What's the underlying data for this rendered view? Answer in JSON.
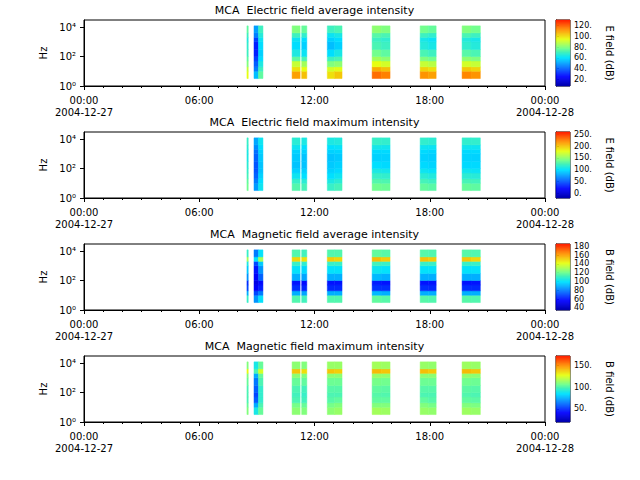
{
  "chart_data": [
    {
      "type": "heatmap",
      "title": "MCA  Electric field average intensity",
      "xlim": [
        "2004-12-27 00:00",
        "2004-12-28 00:00"
      ],
      "xticks": [
        {
          "value": "2004-12-27 00:00",
          "label": "00:00\n2004-12-27"
        },
        {
          "value": "2004-12-27 06:00",
          "label": "06:00"
        },
        {
          "value": "2004-12-27 12:00",
          "label": "12:00"
        },
        {
          "value": "2004-12-27 18:00",
          "label": "18:00"
        },
        {
          "value": "2004-12-28 00:00",
          "label": "00:00\n2004-12-28"
        }
      ],
      "ylabel": "Hz",
      "log": "y",
      "ylim": [
        1,
        30000
      ],
      "yticks": [
        {
          "value": 1,
          "label": "10⁰"
        },
        {
          "value": 100,
          "label": "10²"
        },
        {
          "value": 10000,
          "label": "10⁴"
        }
      ],
      "x": [
        [
          "2004-12-27 08:29",
          "2004-12-27 08:33"
        ],
        [
          "2004-12-27 08:51",
          "2004-12-27 09:05"
        ],
        [
          "2004-12-27 09:05",
          "2004-12-27 09:19"
        ],
        [
          "2004-12-27 10:50",
          "2004-12-27 11:15"
        ],
        [
          "2004-12-27 11:20",
          "2004-12-27 11:36"
        ],
        [
          "2004-12-27 12:40",
          "2004-12-27 13:03"
        ],
        [
          "2004-12-27 13:03",
          "2004-12-27 13:26"
        ],
        [
          "2004-12-27 15:00",
          "2004-12-27 15:28"
        ],
        [
          "2004-12-27 15:28",
          "2004-12-27 15:56"
        ],
        [
          "2004-12-27 17:30",
          "2004-12-27 17:55"
        ],
        [
          "2004-12-27 17:55",
          "2004-12-27 18:20"
        ],
        [
          "2004-12-27 19:41",
          "2004-12-27 20:09"
        ],
        [
          "2004-12-27 20:09",
          "2004-12-27 20:38"
        ]
      ],
      "y_edges": [
        3.2,
        10,
        20,
        50,
        100,
        300,
        1000,
        2000,
        4000,
        12000
      ],
      "cells": [
        [
          95,
          90,
          80,
          75,
          70,
          68,
          66,
          70,
          75
        ],
        [
          55,
          45,
          40,
          35,
          30,
          30,
          35,
          45,
          50
        ],
        [
          75,
          70,
          65,
          60,
          58,
          60,
          62,
          66,
          70
        ],
        [
          110,
          100,
          90,
          75,
          65,
          60,
          62,
          70,
          80
        ],
        [
          105,
          95,
          85,
          72,
          62,
          58,
          60,
          68,
          76
        ],
        [
          100,
          92,
          80,
          70,
          60,
          55,
          58,
          62,
          70
        ],
        [
          104,
          94,
          82,
          72,
          64,
          58,
          60,
          64,
          72
        ],
        [
          118,
          108,
          95,
          85,
          78,
          72,
          70,
          74,
          82
        ],
        [
          115,
          105,
          92,
          82,
          75,
          70,
          68,
          72,
          80
        ],
        [
          112,
          102,
          90,
          80,
          72,
          66,
          64,
          70,
          78
        ],
        [
          110,
          100,
          88,
          78,
          70,
          64,
          62,
          68,
          76
        ],
        [
          114,
          104,
          92,
          82,
          74,
          68,
          66,
          72,
          80
        ],
        [
          112,
          102,
          90,
          80,
          72,
          66,
          64,
          70,
          78
        ]
      ],
      "colorbar": {
        "label": "E field (dB)",
        "range": [
          8,
          130
        ],
        "ticks": [
          {
            "value": 20,
            "label": "20."
          },
          {
            "value": 40,
            "label": "40."
          },
          {
            "value": 60,
            "label": "60."
          },
          {
            "value": 80,
            "label": "80."
          },
          {
            "value": 100,
            "label": "100."
          },
          {
            "value": 120,
            "label": "120."
          }
        ]
      }
    },
    {
      "type": "heatmap",
      "title": "MCA  Electric field maximum intensity",
      "xlim": [
        "2004-12-27 00:00",
        "2004-12-28 00:00"
      ],
      "xticks": [
        {
          "value": "2004-12-27 00:00",
          "label": "00:00\n2004-12-27"
        },
        {
          "value": "2004-12-27 06:00",
          "label": "06:00"
        },
        {
          "value": "2004-12-27 12:00",
          "label": "12:00"
        },
        {
          "value": "2004-12-27 18:00",
          "label": "18:00"
        },
        {
          "value": "2004-12-28 00:00",
          "label": "00:00\n2004-12-28"
        }
      ],
      "ylabel": "Hz",
      "log": "y",
      "ylim": [
        1,
        30000
      ],
      "yticks": [
        {
          "value": 1,
          "label": "10⁰"
        },
        {
          "value": 100,
          "label": "10²"
        },
        {
          "value": 10000,
          "label": "10⁴"
        }
      ],
      "x": [
        [
          "2004-12-27 08:29",
          "2004-12-27 08:33"
        ],
        [
          "2004-12-27 08:51",
          "2004-12-27 09:05"
        ],
        [
          "2004-12-27 09:05",
          "2004-12-27 09:19"
        ],
        [
          "2004-12-27 10:50",
          "2004-12-27 11:15"
        ],
        [
          "2004-12-27 11:20",
          "2004-12-27 11:36"
        ],
        [
          "2004-12-27 12:40",
          "2004-12-27 13:03"
        ],
        [
          "2004-12-27 13:03",
          "2004-12-27 13:26"
        ],
        [
          "2004-12-27 15:00",
          "2004-12-27 15:28"
        ],
        [
          "2004-12-27 15:28",
          "2004-12-27 15:56"
        ],
        [
          "2004-12-27 17:30",
          "2004-12-27 17:55"
        ],
        [
          "2004-12-27 17:55",
          "2004-12-27 18:20"
        ],
        [
          "2004-12-27 19:41",
          "2004-12-27 20:09"
        ],
        [
          "2004-12-27 20:09",
          "2004-12-27 20:38"
        ]
      ],
      "y_edges": [
        3.2,
        10,
        20,
        50,
        100,
        300,
        1000,
        2000,
        4000,
        12000
      ],
      "cells": [
        [
          140,
          135,
          125,
          120,
          115,
          110,
          110,
          115,
          120
        ],
        [
          75,
          65,
          55,
          50,
          50,
          55,
          60,
          70,
          80
        ],
        [
          105,
          100,
          95,
          90,
          90,
          92,
          95,
          100,
          105
        ],
        [
          130,
          120,
          105,
          95,
          90,
          92,
          95,
          105,
          115
        ],
        [
          125,
          115,
          100,
          95,
          90,
          90,
          95,
          100,
          110
        ],
        [
          120,
          110,
          100,
          95,
          92,
          90,
          95,
          100,
          110
        ],
        [
          125,
          115,
          105,
          98,
          95,
          92,
          96,
          102,
          112
        ],
        [
          140,
          130,
          120,
          110,
          100,
          95,
          98,
          108,
          120
        ],
        [
          138,
          128,
          118,
          108,
          98,
          95,
          98,
          106,
          118
        ],
        [
          135,
          125,
          115,
          105,
          98,
          95,
          98,
          105,
          118
        ],
        [
          132,
          122,
          112,
          102,
          96,
          94,
          96,
          104,
          116
        ],
        [
          136,
          126,
          116,
          106,
          98,
          96,
          98,
          106,
          118
        ],
        [
          134,
          124,
          114,
          104,
          98,
          95,
          98,
          105,
          118
        ]
      ],
      "colorbar": {
        "label": "E field (dB)",
        "range": [
          -20,
          260
        ],
        "ticks": [
          {
            "value": 0,
            "label": "0."
          },
          {
            "value": 50,
            "label": "50."
          },
          {
            "value": 100,
            "label": "100."
          },
          {
            "value": 150,
            "label": "150."
          },
          {
            "value": 200,
            "label": "200."
          },
          {
            "value": 250,
            "label": "250."
          }
        ]
      }
    },
    {
      "type": "heatmap",
      "title": "MCA  Magnetic field average intensity",
      "xlim": [
        "2004-12-27 00:00",
        "2004-12-28 00:00"
      ],
      "xticks": [
        {
          "value": "2004-12-27 00:00",
          "label": "00:00\n2004-12-27"
        },
        {
          "value": "2004-12-27 06:00",
          "label": "06:00"
        },
        {
          "value": "2004-12-27 12:00",
          "label": "12:00"
        },
        {
          "value": "2004-12-27 18:00",
          "label": "18:00"
        },
        {
          "value": "2004-12-28 00:00",
          "label": "00:00\n2004-12-28"
        }
      ],
      "ylabel": "Hz",
      "log": "y",
      "ylim": [
        1,
        30000
      ],
      "yticks": [
        {
          "value": 1,
          "label": "10⁰"
        },
        {
          "value": 100,
          "label": "10²"
        },
        {
          "value": 10000,
          "label": "10⁴"
        }
      ],
      "x": [
        [
          "2004-12-27 08:29",
          "2004-12-27 08:33"
        ],
        [
          "2004-12-27 08:51",
          "2004-12-27 09:05"
        ],
        [
          "2004-12-27 09:05",
          "2004-12-27 09:19"
        ],
        [
          "2004-12-27 10:50",
          "2004-12-27 11:15"
        ],
        [
          "2004-12-27 11:20",
          "2004-12-27 11:36"
        ],
        [
          "2004-12-27 12:40",
          "2004-12-27 13:03"
        ],
        [
          "2004-12-27 13:03",
          "2004-12-27 13:26"
        ],
        [
          "2004-12-27 15:00",
          "2004-12-27 15:28"
        ],
        [
          "2004-12-27 15:28",
          "2004-12-27 15:56"
        ],
        [
          "2004-12-27 17:30",
          "2004-12-27 17:55"
        ],
        [
          "2004-12-27 17:55",
          "2004-12-27 18:20"
        ],
        [
          "2004-12-27 19:41",
          "2004-12-27 20:09"
        ],
        [
          "2004-12-27 20:09",
          "2004-12-27 20:38"
        ]
      ],
      "y_edges": [
        3.2,
        10,
        20,
        50,
        100,
        300,
        1000,
        2000,
        4000,
        12000
      ],
      "cells": [
        [
          110,
          90,
          70,
          65,
          85,
          95,
          105,
          130,
          110
        ],
        [
          85,
          70,
          55,
          50,
          55,
          60,
          70,
          100,
          80
        ],
        [
          100,
          80,
          62,
          58,
          75,
          85,
          95,
          130,
          100
        ],
        [
          115,
          90,
          65,
          60,
          90,
          100,
          110,
          150,
          115
        ],
        [
          112,
          88,
          63,
          58,
          88,
          98,
          108,
          148,
          112
        ],
        [
          115,
          90,
          64,
          60,
          90,
          100,
          110,
          152,
          115
        ],
        [
          115,
          90,
          64,
          60,
          90,
          100,
          110,
          150,
          115
        ],
        [
          118,
          92,
          66,
          62,
          92,
          102,
          112,
          155,
          118
        ],
        [
          116,
          90,
          65,
          60,
          90,
          100,
          110,
          152,
          116
        ],
        [
          116,
          90,
          65,
          60,
          90,
          100,
          110,
          154,
          116
        ],
        [
          115,
          90,
          64,
          60,
          90,
          100,
          110,
          152,
          115
        ],
        [
          116,
          90,
          65,
          60,
          90,
          100,
          110,
          153,
          116
        ],
        [
          115,
          90,
          64,
          60,
          90,
          100,
          110,
          150,
          115
        ]
      ],
      "colorbar": {
        "label": "B field (dB)",
        "range": [
          35,
          185
        ],
        "ticks": [
          40,
          60,
          80,
          100,
          120,
          140,
          160,
          180
        ]
      }
    },
    {
      "type": "heatmap",
      "title": "MCA  Magnetic field maximum intensity",
      "xlim": [
        "2004-12-27 00:00",
        "2004-12-28 00:00"
      ],
      "xticks": [
        {
          "value": "2004-12-27 00:00",
          "label": "00:00\n2004-12-27"
        },
        {
          "value": "2004-12-27 06:00",
          "label": "06:00"
        },
        {
          "value": "2004-12-27 12:00",
          "label": "12:00"
        },
        {
          "value": "2004-12-27 18:00",
          "label": "18:00"
        },
        {
          "value": "2004-12-28 00:00",
          "label": "00:00\n2004-12-28"
        }
      ],
      "ylabel": "Hz",
      "log": "y",
      "ylim": [
        1,
        30000
      ],
      "yticks": [
        {
          "value": 1,
          "label": "10⁰"
        },
        {
          "value": 100,
          "label": "10²"
        },
        {
          "value": 10000,
          "label": "10⁴"
        }
      ],
      "x": [
        [
          "2004-12-27 08:29",
          "2004-12-27 08:33"
        ],
        [
          "2004-12-27 08:51",
          "2004-12-27 09:05"
        ],
        [
          "2004-12-27 09:05",
          "2004-12-27 09:19"
        ],
        [
          "2004-12-27 10:50",
          "2004-12-27 11:15"
        ],
        [
          "2004-12-27 11:20",
          "2004-12-27 11:36"
        ],
        [
          "2004-12-27 12:40",
          "2004-12-27 13:03"
        ],
        [
          "2004-12-27 13:03",
          "2004-12-27 13:26"
        ],
        [
          "2004-12-27 15:00",
          "2004-12-27 15:28"
        ],
        [
          "2004-12-27 15:28",
          "2004-12-27 15:56"
        ],
        [
          "2004-12-27 17:30",
          "2004-12-27 17:55"
        ],
        [
          "2004-12-27 17:55",
          "2004-12-27 18:20"
        ],
        [
          "2004-12-27 19:41",
          "2004-12-27 20:09"
        ],
        [
          "2004-12-27 20:09",
          "2004-12-27 20:38"
        ]
      ],
      "y_edges": [
        3.2,
        10,
        20,
        50,
        100,
        300,
        1000,
        2000,
        4000,
        12000
      ],
      "cells": [
        [
          110,
          105,
          100,
          100,
          100,
          105,
          110,
          130,
          110
        ],
        [
          90,
          75,
          60,
          55,
          60,
          65,
          75,
          100,
          90
        ],
        [
          105,
          100,
          95,
          95,
          95,
          100,
          105,
          125,
          105
        ],
        [
          112,
          108,
          100,
          98,
          100,
          105,
          112,
          140,
          112
        ],
        [
          110,
          105,
          98,
          96,
          98,
          104,
          110,
          135,
          110
        ],
        [
          112,
          108,
          102,
          100,
          102,
          106,
          112,
          140,
          114
        ],
        [
          114,
          110,
          104,
          100,
          102,
          106,
          112,
          138,
          114
        ],
        [
          116,
          110,
          104,
          102,
          104,
          108,
          114,
          142,
          116
        ],
        [
          115,
          110,
          104,
          101,
          103,
          107,
          113,
          140,
          115
        ],
        [
          114,
          110,
          104,
          100,
          102,
          106,
          112,
          141,
          114
        ],
        [
          113,
          108,
          102,
          100,
          102,
          106,
          112,
          139,
          113
        ],
        [
          115,
          110,
          104,
          101,
          103,
          107,
          113,
          142,
          115
        ],
        [
          114,
          109,
          103,
          100,
          102,
          106,
          112,
          140,
          114
        ]
      ],
      "colorbar": {
        "label": "B field (dB)",
        "range": [
          20,
          172
        ],
        "ticks": [
          {
            "value": 50,
            "label": "50."
          },
          {
            "value": 100,
            "label": "100."
          },
          {
            "value": 150,
            "label": "150."
          }
        ]
      }
    }
  ]
}
